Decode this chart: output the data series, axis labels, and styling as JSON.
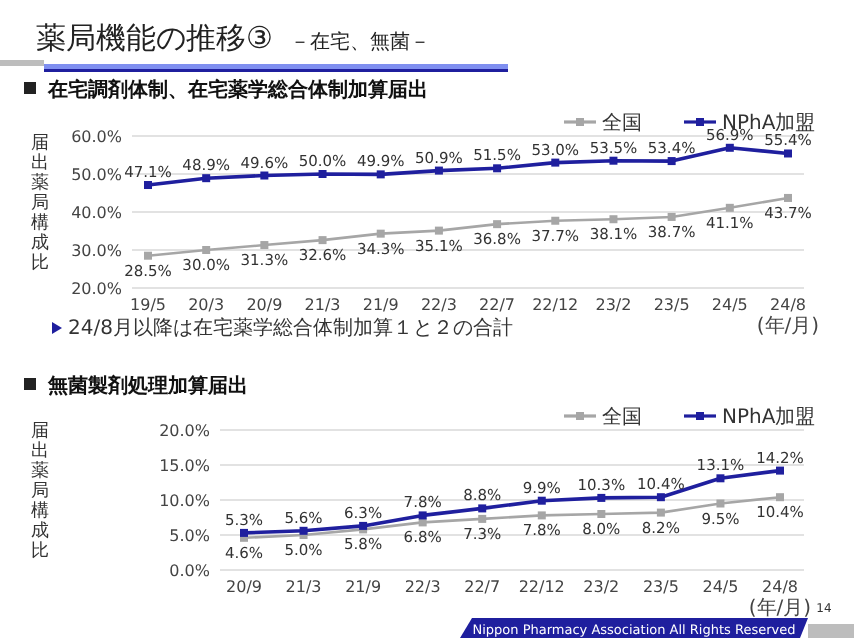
{
  "chart_data": [
    {
      "type": "line",
      "title": "在宅調剤体制、在宅薬学総合体制加算届出",
      "ylabel": "届出薬局構成比",
      "xlabel": "(年/月)",
      "annotations": [
        "薬局機能の推移③",
        "－在宅、無菌－",
        "24/8月以降は在宅薬学総合体制加算１と２の合計"
      ],
      "categories": [
        "19/5",
        "20/3",
        "20/9",
        "21/3",
        "21/9",
        "22/3",
        "22/7",
        "22/12",
        "23/2",
        "23/5",
        "24/5",
        "24/8"
      ],
      "series": [
        {
          "name": "全国",
          "color": "#a6a6a6",
          "values": [
            28.5,
            30.0,
            31.3,
            32.6,
            34.3,
            35.1,
            36.8,
            37.7,
            38.1,
            38.7,
            41.1,
            43.7
          ],
          "value_labels": [
            "28.5%",
            "30.0%",
            "31.3%",
            "32.6%",
            "34.3%",
            "35.1%",
            "36.8%",
            "37.7%",
            "38.1%",
            "38.7%",
            "41.1%",
            "43.7%"
          ]
        },
        {
          "name": "NPhA加盟",
          "color": "#1f1f9e",
          "values": [
            47.1,
            48.9,
            49.6,
            50.0,
            49.9,
            50.9,
            51.5,
            53.0,
            53.5,
            53.4,
            56.9,
            55.4
          ],
          "value_labels": [
            "47.1%",
            "48.9%",
            "49.6%",
            "50.0%",
            "49.9%",
            "50.9%",
            "51.5%",
            "53.0%",
            "53.5%",
            "53.4%",
            "56.9%",
            "55.4%"
          ]
        }
      ],
      "ylim": [
        20,
        60
      ],
      "yticks": [
        {
          "value": 20,
          "label": "20.0%"
        },
        {
          "value": 30,
          "label": "30.0%"
        },
        {
          "value": 40,
          "label": "40.0%"
        },
        {
          "value": 50,
          "label": "50.0%"
        },
        {
          "value": 60,
          "label": "60.0%"
        }
      ],
      "grid": "y",
      "legend": "top right",
      "marker": "square"
    },
    {
      "type": "line",
      "title": "無菌製剤処理加算届出",
      "ylabel": "届出薬局構成比",
      "xlabel": "(年/月)",
      "annotations": [
        "Nippon Pharmacy Association All Rights Reserved",
        "14"
      ],
      "categories": [
        "20/9",
        "21/3",
        "21/9",
        "22/3",
        "22/7",
        "22/12",
        "23/2",
        "23/5",
        "24/5",
        "24/8"
      ],
      "series": [
        {
          "name": "全国",
          "color": "#a6a6a6",
          "values": [
            4.6,
            5.0,
            5.8,
            6.8,
            7.3,
            7.8,
            8.0,
            8.2,
            9.5,
            10.4
          ],
          "value_labels": [
            "4.6%",
            "5.0%",
            "5.8%",
            "6.8%",
            "7.3%",
            "7.8%",
            "8.0%",
            "8.2%",
            "9.5%",
            "10.4%"
          ]
        },
        {
          "name": "NPhA加盟",
          "color": "#1f1f9e",
          "values": [
            5.3,
            5.6,
            6.3,
            7.8,
            8.8,
            9.9,
            10.3,
            10.4,
            13.1,
            14.2
          ],
          "value_labels": [
            "5.3%",
            "5.6%",
            "6.3%",
            "7.8%",
            "8.8%",
            "9.9%",
            "10.3%",
            "10.4%",
            "13.1%",
            "14.2%"
          ]
        }
      ],
      "ylim": [
        0,
        20
      ],
      "yticks": [
        {
          "value": 0,
          "label": "0.0%"
        },
        {
          "value": 5,
          "label": "5.0%"
        },
        {
          "value": 10,
          "label": "10.0%"
        },
        {
          "value": 15,
          "label": "15.0%"
        },
        {
          "value": 20,
          "label": "20.0%"
        }
      ],
      "grid": "y",
      "legend": "top right",
      "marker": "square"
    }
  ]
}
